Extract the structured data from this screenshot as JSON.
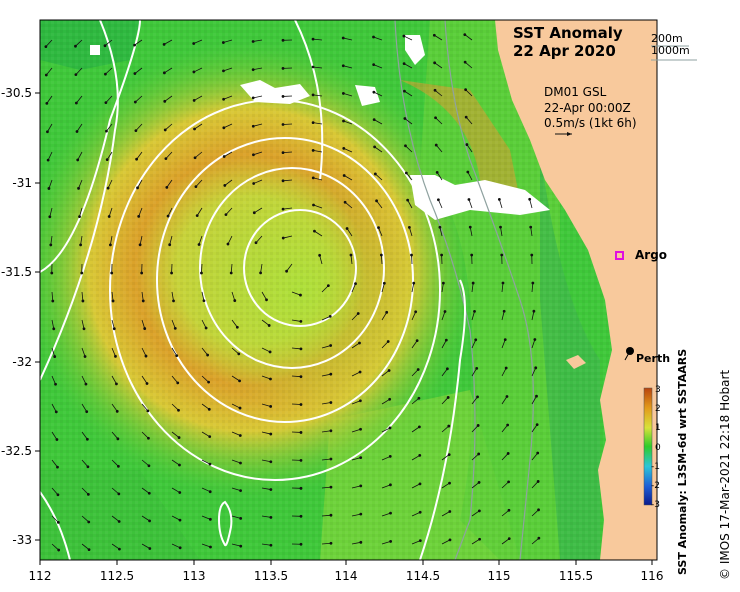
{
  "title": {
    "line1": "SST Anomaly",
    "line2": "22 Apr 2020"
  },
  "depth_legend": {
    "shallow": "200m",
    "deep": "1000m"
  },
  "current_info": {
    "line1": "DM01 GSL",
    "line2": "22-Apr 00:00Z",
    "line3": "0.5m/s (1kt 6h)"
  },
  "markers": {
    "argo": "Argo",
    "perth": "Perth"
  },
  "axes": {
    "x_ticks": [
      "112",
      "112.5",
      "113",
      "113.5",
      "114",
      "114.5",
      "115",
      "115.5",
      "116"
    ],
    "y_ticks": [
      "-30.5",
      "-31",
      "-31.5",
      "-32",
      "-32.5",
      "-33"
    ]
  },
  "colorbar": {
    "label": "SST Anomaly: L3SM-6d wrt SSTAARS",
    "ticks": [
      "3",
      "2",
      "1",
      "0",
      "-1",
      "-2",
      "-3"
    ],
    "colors": [
      "#0a1a8c",
      "#1f5fd6",
      "#2cc6d8",
      "#2fcc2a",
      "#d8e23a",
      "#e39a1a",
      "#b8440e"
    ]
  },
  "credit": "© IMOS 17-Mar-2021 22:18 Hobart",
  "palette": {
    "land": "#f8c99c",
    "high": "#d68a1e",
    "mid": "#c5d63a",
    "low": "#3fc83a"
  }
}
